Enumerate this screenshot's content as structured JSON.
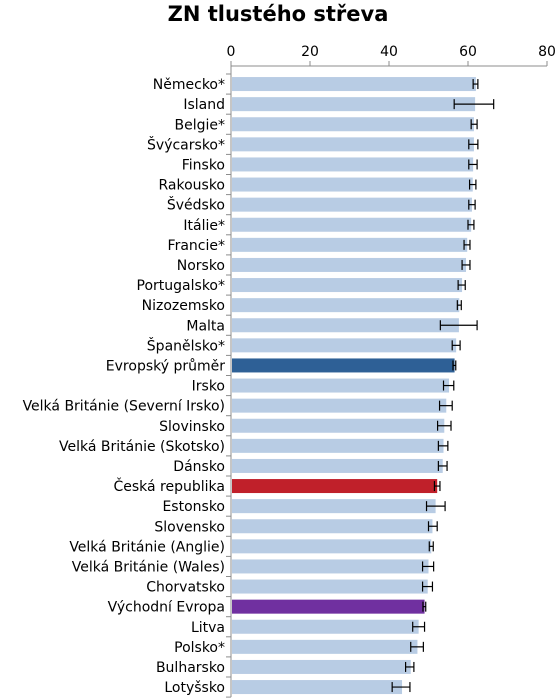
{
  "chart_data": {
    "type": "bar",
    "orientation": "horizontal",
    "title": "ZN tlustého střeva",
    "xlabel": "",
    "ylabel": "",
    "xlim": [
      0,
      80
    ],
    "x_ticks": [
      "0",
      "20",
      "40",
      "60",
      "80"
    ],
    "grid": false,
    "legend": "none",
    "colors": {
      "default": "#b8cce4",
      "highlight_european_average": "#2e6096",
      "highlight_czech_republic": "#c0202a",
      "highlight_eastern_europe": "#7030a0",
      "error_bar": "#000000"
    },
    "categories": [
      "Německo*",
      "Island",
      "Belgie*",
      "Švýcarsko*",
      "Finsko",
      "Rakousko",
      "Švédsko",
      "Itálie*",
      "Francie*",
      "Norsko",
      "Portugalsko*",
      "Nizozemsko",
      "Malta",
      "Španělsko*",
      "Evropský průměr",
      "Irsko",
      "Velká Británie (Severní Irsko)",
      "Slovinsko",
      "Velká Británie (Skotsko)",
      "Dánsko",
      "Česká republika",
      "Estonsko",
      "Slovensko",
      "Velká Británie (Anglie)",
      "Velká Británie (Wales)",
      "Chorvatsko",
      "Východní Evropa",
      "Litva",
      "Polsko*",
      "Bulharsko",
      "Lotyšsko"
    ],
    "values": [
      62.0,
      61.8,
      61.5,
      61.5,
      61.3,
      61.2,
      61.0,
      60.8,
      59.8,
      59.5,
      58.5,
      57.8,
      57.7,
      57.0,
      56.6,
      55.2,
      54.5,
      54.0,
      53.8,
      53.6,
      52.2,
      51.8,
      51.0,
      50.7,
      50.0,
      49.8,
      49.0,
      47.5,
      47.2,
      45.5,
      43.3
    ],
    "error_low": [
      61.3,
      56.5,
      60.8,
      60.2,
      60.2,
      60.4,
      60.2,
      60.0,
      59.0,
      58.5,
      57.5,
      57.3,
      53.0,
      56.0,
      56.2,
      53.8,
      52.8,
      52.3,
      52.5,
      52.5,
      51.5,
      49.5,
      50.0,
      50.2,
      48.5,
      48.5,
      48.6,
      46.0,
      45.5,
      44.2,
      40.8
    ],
    "error_high": [
      62.5,
      66.5,
      62.3,
      62.5,
      62.3,
      62.0,
      61.8,
      61.5,
      60.5,
      60.5,
      59.3,
      58.3,
      62.3,
      58.0,
      56.9,
      56.4,
      56.0,
      55.7,
      54.9,
      54.7,
      52.9,
      54.2,
      52.2,
      51.2,
      51.3,
      51.0,
      49.3,
      49.0,
      48.7,
      46.3,
      45.3
    ],
    "highlight": {
      "Evropský průměr": "highlight_european_average",
      "Česká republika": "highlight_czech_republic",
      "Východní Evropa": "highlight_eastern_europe"
    }
  }
}
